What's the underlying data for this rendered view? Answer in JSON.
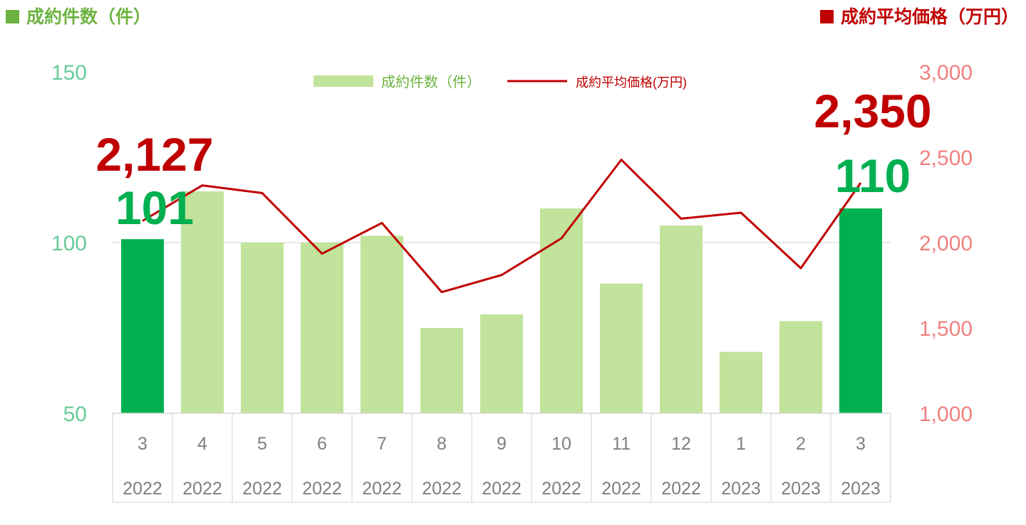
{
  "header": {
    "left_title": "成約件数（件）",
    "right_title": "成約平均価格（万円）"
  },
  "colors": {
    "bar_highlight": "#00b050",
    "bar_normal": "#c1e39b",
    "line": "#c00000",
    "left_axis_text": "#66cc99",
    "right_axis_text": "#f08080",
    "left_title": "#6cb33f",
    "right_title": "#c00000",
    "label_green": "#00b050",
    "label_red": "#c00000",
    "grid": "#d9d9d9"
  },
  "chart_data": {
    "type": "bar",
    "legend_position": "top-center",
    "grid": true,
    "categories": [
      {
        "month": "3",
        "year": "2022"
      },
      {
        "month": "4",
        "year": "2022"
      },
      {
        "month": "5",
        "year": "2022"
      },
      {
        "month": "6",
        "year": "2022"
      },
      {
        "month": "7",
        "year": "2022"
      },
      {
        "month": "8",
        "year": "2022"
      },
      {
        "month": "9",
        "year": "2022"
      },
      {
        "month": "10",
        "year": "2022"
      },
      {
        "month": "11",
        "year": "2022"
      },
      {
        "month": "12",
        "year": "2022"
      },
      {
        "month": "1",
        "year": "2023"
      },
      {
        "month": "2",
        "year": "2023"
      },
      {
        "month": "3",
        "year": "2023"
      }
    ],
    "series": [
      {
        "name": "成約件数（件）",
        "type": "bar",
        "axis": "left",
        "values": [
          101,
          115,
          100,
          100,
          102,
          75,
          79,
          110,
          88,
          105,
          68,
          77,
          110
        ],
        "highlight_indices": [
          0,
          12
        ]
      },
      {
        "name": "成約平均価格(万円)",
        "type": "line",
        "axis": "right",
        "values": [
          2127,
          2335,
          2290,
          1935,
          2115,
          1710,
          1810,
          2025,
          2485,
          2140,
          2175,
          1850,
          2350
        ]
      }
    ],
    "left_axis": {
      "min": 50,
      "max": 150,
      "ticks": [
        "150",
        "100",
        "50"
      ]
    },
    "right_axis": {
      "min": 1000,
      "max": 3000,
      "ticks": [
        "3,000",
        "2,500",
        "2,000",
        "1,500",
        "1,000"
      ]
    },
    "annotations": [
      {
        "series": "price",
        "index": 0,
        "text": "2,127"
      },
      {
        "series": "count",
        "index": 0,
        "text": "101"
      },
      {
        "series": "price",
        "index": 12,
        "text": "2,350"
      },
      {
        "series": "count",
        "index": 12,
        "text": "110"
      }
    ]
  }
}
